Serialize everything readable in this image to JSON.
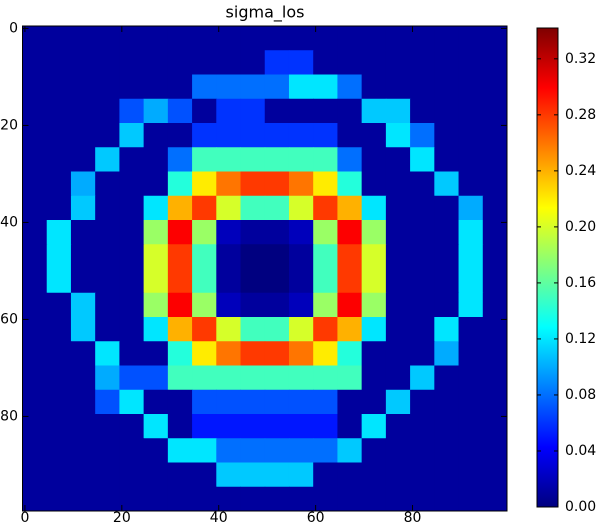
{
  "chart_data": {
    "type": "heatmap",
    "title": "sigma_los",
    "colormap": "jet",
    "xlim": [
      -0.5,
      99.5
    ],
    "ylim": [
      99.5,
      -0.5
    ],
    "xticks": [
      0,
      20,
      40,
      60,
      80
    ],
    "yticks": [
      0,
      20,
      40,
      60,
      80
    ],
    "clim": [
      0,
      0.342
    ],
    "cticks": [
      {
        "value": 0,
        "label": "0.00"
      },
      0.04,
      0.08,
      0.12,
      0.16,
      {
        "value": 0.2,
        "label": "0.20"
      },
      0.24,
      0.28,
      0.32
    ],
    "values": [
      [
        0.01,
        0.01,
        0.01,
        0.01,
        0.01,
        0.01,
        0.01,
        0.01,
        0.01,
        0.01,
        0.01,
        0.01,
        0.01,
        0.01,
        0.01,
        0.01,
        0.01,
        0.01,
        0.01,
        0.01
      ],
      [
        0.01,
        0.01,
        0.01,
        0.01,
        0.01,
        0.01,
        0.01,
        0.01,
        0.01,
        0.01,
        0.06,
        0.06,
        0.01,
        0.01,
        0.01,
        0.01,
        0.01,
        0.01,
        0.01,
        0.01
      ],
      [
        0.01,
        0.01,
        0.01,
        0.01,
        0.01,
        0.01,
        0.01,
        0.08,
        0.08,
        0.08,
        0.08,
        0.12,
        0.12,
        0.08,
        0.01,
        0.01,
        0.01,
        0.01,
        0.01,
        0.01
      ],
      [
        0.01,
        0.01,
        0.01,
        0.01,
        0.07,
        0.1,
        0.07,
        0.01,
        0.06,
        0.06,
        0.01,
        0.01,
        0.01,
        0.01,
        0.11,
        0.11,
        0.01,
        0.01,
        0.01,
        0.01
      ],
      [
        0.01,
        0.01,
        0.01,
        0.01,
        0.11,
        0.01,
        0.01,
        0.06,
        0.06,
        0.06,
        0.06,
        0.06,
        0.06,
        0.01,
        0.01,
        0.12,
        0.08,
        0.01,
        0.01,
        0.01
      ],
      [
        0.01,
        0.01,
        0.01,
        0.11,
        0.01,
        0.01,
        0.08,
        0.15,
        0.15,
        0.15,
        0.15,
        0.15,
        0.15,
        0.08,
        0.01,
        0.01,
        0.12,
        0.01,
        0.01,
        0.01
      ],
      [
        0.01,
        0.01,
        0.1,
        0.01,
        0.01,
        0.01,
        0.14,
        0.22,
        0.26,
        0.28,
        0.28,
        0.26,
        0.22,
        0.14,
        0.01,
        0.01,
        0.01,
        0.11,
        0.01,
        0.01
      ],
      [
        0.01,
        0.01,
        0.11,
        0.01,
        0.01,
        0.12,
        0.24,
        0.28,
        0.2,
        0.15,
        0.15,
        0.2,
        0.28,
        0.24,
        0.12,
        0.01,
        0.01,
        0.01,
        0.1,
        0.01
      ],
      [
        0.01,
        0.12,
        0.01,
        0.01,
        0.01,
        0.18,
        0.3,
        0.18,
        0.02,
        0.01,
        0.01,
        0.02,
        0.18,
        0.3,
        0.18,
        0.01,
        0.01,
        0.01,
        0.12,
        0.01
      ],
      [
        0.01,
        0.12,
        0.01,
        0.01,
        0.01,
        0.2,
        0.28,
        0.15,
        0.01,
        0,
        0,
        0.01,
        0.15,
        0.28,
        0.2,
        0.01,
        0.01,
        0.01,
        0.12,
        0.01
      ],
      [
        0.01,
        0.12,
        0.01,
        0.01,
        0.01,
        0.2,
        0.28,
        0.15,
        0.01,
        0,
        0,
        0.01,
        0.15,
        0.28,
        0.2,
        0.01,
        0.01,
        0.01,
        0.12,
        0.01
      ],
      [
        0.01,
        0.01,
        0.11,
        0.01,
        0.01,
        0.18,
        0.3,
        0.18,
        0.02,
        0.01,
        0.01,
        0.02,
        0.18,
        0.3,
        0.18,
        0.01,
        0.01,
        0.01,
        0.12,
        0.01
      ],
      [
        0.01,
        0.01,
        0.11,
        0.01,
        0.01,
        0.12,
        0.24,
        0.28,
        0.2,
        0.15,
        0.15,
        0.2,
        0.28,
        0.24,
        0.12,
        0.01,
        0.01,
        0.12,
        0.01,
        0.01
      ],
      [
        0.01,
        0.01,
        0.01,
        0.12,
        0.01,
        0.01,
        0.14,
        0.22,
        0.26,
        0.28,
        0.28,
        0.26,
        0.22,
        0.14,
        0.01,
        0.01,
        0.01,
        0.1,
        0.01,
        0.01
      ],
      [
        0.01,
        0.01,
        0.01,
        0.1,
        0.07,
        0.07,
        0.15,
        0.15,
        0.15,
        0.15,
        0.15,
        0.15,
        0.15,
        0.15,
        0.01,
        0.01,
        0.11,
        0.01,
        0.01,
        0.01
      ],
      [
        0.01,
        0.01,
        0.01,
        0.07,
        0.12,
        0.01,
        0.01,
        0.07,
        0.07,
        0.07,
        0.07,
        0.07,
        0.07,
        0.01,
        0.01,
        0.11,
        0.01,
        0.01,
        0.01,
        0.01
      ],
      [
        0.01,
        0.01,
        0.01,
        0.01,
        0.01,
        0.12,
        0.01,
        0.05,
        0.05,
        0.05,
        0.05,
        0.05,
        0.05,
        0.01,
        0.12,
        0.01,
        0.01,
        0.01,
        0.01,
        0.01
      ],
      [
        0.01,
        0.01,
        0.01,
        0.01,
        0.01,
        0.01,
        0.12,
        0.12,
        0.08,
        0.08,
        0.08,
        0.08,
        0.08,
        0.11,
        0.01,
        0.01,
        0.01,
        0.01,
        0.01,
        0.01
      ],
      [
        0.01,
        0.01,
        0.01,
        0.01,
        0.01,
        0.01,
        0.01,
        0.01,
        0.11,
        0.11,
        0.11,
        0.11,
        0.01,
        0.01,
        0.01,
        0.01,
        0.01,
        0.01,
        0.01,
        0.01
      ],
      [
        0.01,
        0.01,
        0.01,
        0.01,
        0.01,
        0.01,
        0.01,
        0.01,
        0.01,
        0.01,
        0.01,
        0.01,
        0.01,
        0.01,
        0.01,
        0.01,
        0.01,
        0.01,
        0.01,
        0.01
      ]
    ]
  }
}
